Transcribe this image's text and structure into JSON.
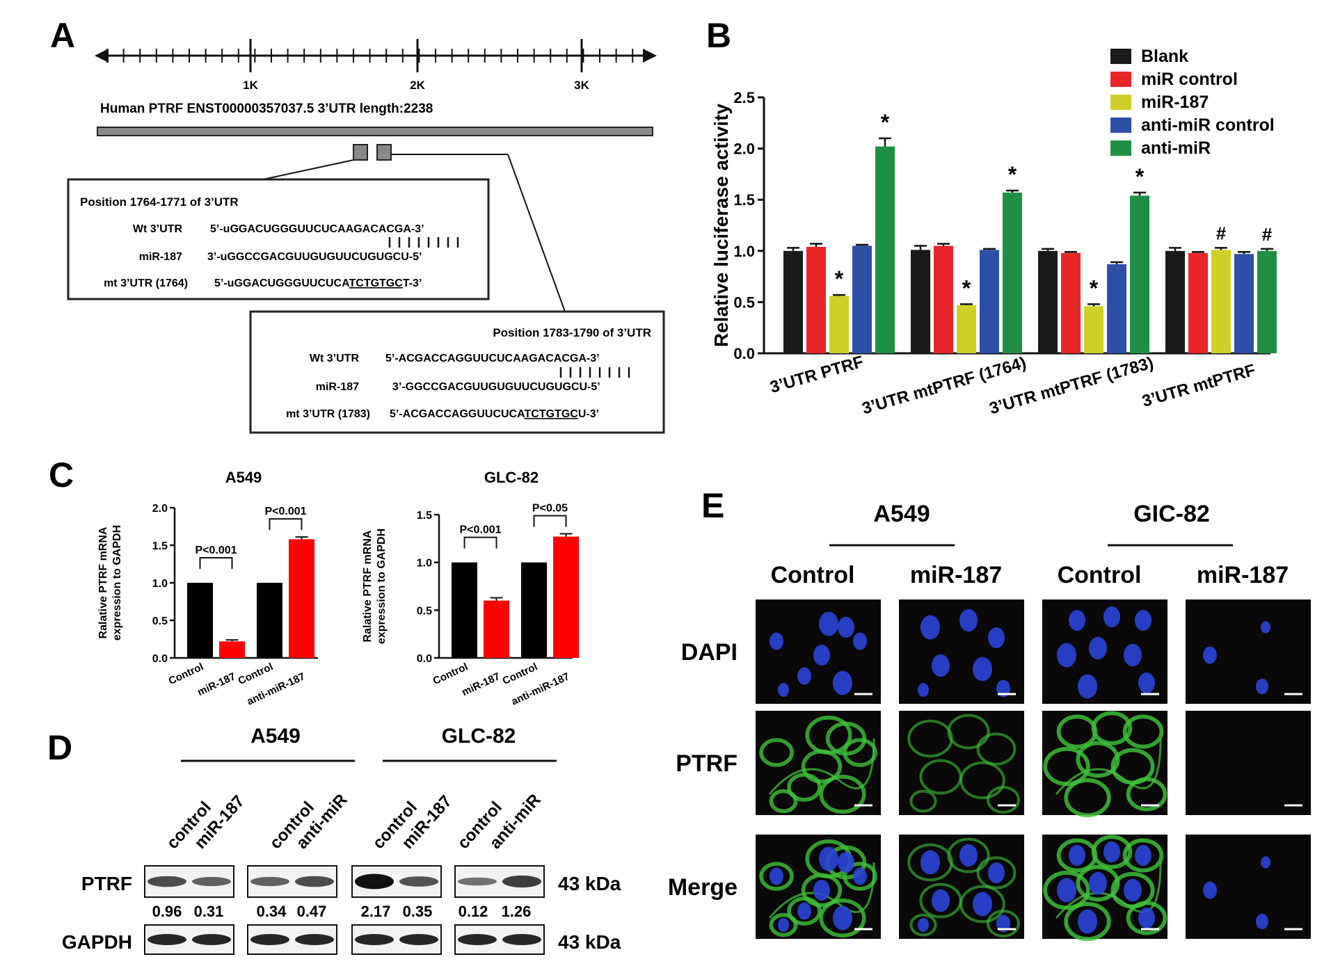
{
  "panel_a": {
    "letter": "A",
    "scale_ticks": [
      "1K",
      "2K",
      "3K"
    ],
    "transcript_label": "Human PTRF ENST00000357037.5 3’UTR length:2238",
    "site1": {
      "title": "Position 1764-1771 of 3’UTR",
      "rows": [
        {
          "label": "Wt 3’UTR",
          "seq": "5’-uGGACUGGGUUCUCAAGACACGA-3’"
        },
        {
          "label": "miR-187",
          "seq": "3’-uGGCCGACGUUGUGUUCUGUGCU-5’"
        },
        {
          "label": "mt  3’UTR  (1764)",
          "seq_prefix": "5’-uGGACUGGGUUCUCA",
          "seq_mut": "TCTGTGC",
          "seq_suffix": "T-3’"
        }
      ]
    },
    "site2": {
      "title": "Position 1783-1790 of 3’UTR",
      "rows": [
        {
          "label": "Wt 3’UTR",
          "seq": "5’-ACGACCAGGUUCUCAAGACACGA-3’"
        },
        {
          "label": "miR-187",
          "seq": "3’-GGCCGACGUUGUGUUCUGUGCU-5’"
        },
        {
          "label": "mt 3’UTR (1783)",
          "seq_prefix": "5’-ACGACCAGGUUCUCA",
          "seq_mut": "TCTGTGC",
          "seq_suffix": "U-3’"
        }
      ]
    }
  },
  "panel_b": {
    "letter": "B",
    "chart_data": {
      "type": "bar",
      "ylabel": "Relative luciferase activity",
      "ylim": [
        0,
        2.5
      ],
      "yticks": [
        "0.0",
        "0.5",
        "1.0",
        "1.5",
        "2.0",
        "2.5"
      ],
      "categories": [
        "3’UTR PTRF",
        "3’UTR mtPTRF (1764)",
        "3’UTR mtPTRF (1783)",
        "3’UTR mtPTRF"
      ],
      "series": [
        {
          "name": "Blank",
          "color": "#1a1a1a",
          "values": [
            1.0,
            1.01,
            1.0,
            1.0
          ],
          "errors": [
            0.03,
            0.04,
            0.02,
            0.03
          ]
        },
        {
          "name": "miR control",
          "color": "#e8262a",
          "values": [
            1.04,
            1.05,
            0.98,
            0.98
          ],
          "errors": [
            0.03,
            0.02,
            0.01,
            0.01
          ]
        },
        {
          "name": "miR-187",
          "color": "#cfd12a",
          "values": [
            0.56,
            0.47,
            0.46,
            1.01
          ],
          "errors": [
            0.01,
            0.01,
            0.02,
            0.02
          ]
        },
        {
          "name": "anti-miR control",
          "color": "#2e4fa8",
          "values": [
            1.05,
            1.01,
            0.87,
            0.97
          ],
          "errors": [
            0.01,
            0.01,
            0.02,
            0.02
          ]
        },
        {
          "name": "anti-miR",
          "color": "#1f8f45",
          "values": [
            2.02,
            1.57,
            1.54,
            1.0
          ],
          "errors": [
            0.08,
            0.02,
            0.03,
            0.02
          ]
        }
      ],
      "annotations": [
        {
          "category": 0,
          "series": 2,
          "text": "*"
        },
        {
          "category": 0,
          "series": 4,
          "text": "*"
        },
        {
          "category": 1,
          "series": 2,
          "text": "*"
        },
        {
          "category": 1,
          "series": 4,
          "text": "*"
        },
        {
          "category": 2,
          "series": 2,
          "text": "*"
        },
        {
          "category": 2,
          "series": 4,
          "text": "*"
        },
        {
          "category": 3,
          "series": 2,
          "text": "#"
        },
        {
          "category": 3,
          "series": 4,
          "text": "#"
        }
      ]
    }
  },
  "panel_c": {
    "letter": "C",
    "chart_data": [
      {
        "type": "bar",
        "title": "A549",
        "ylabel_line1": "Ralative PTRF mRNA",
        "ylabel_line2": "expression to GAPDH",
        "ylim": [
          0,
          2.0
        ],
        "yticks": [
          "0.0",
          "0.5",
          "1.0",
          "1.5",
          "2.0"
        ],
        "categories": [
          "Control",
          "miR-187",
          "Control",
          "anti-miR-187"
        ],
        "values": [
          1.0,
          0.22,
          1.0,
          1.58
        ],
        "errors": [
          0,
          0.02,
          0,
          0.03
        ],
        "colors": [
          "#000000",
          "#ff0000",
          "#000000",
          "#ff0000"
        ],
        "p_values": [
          "P<0.001",
          "P<0.001"
        ]
      },
      {
        "type": "bar",
        "title": "GLC-82",
        "ylabel_line1": "Ralative PTRF mRNA",
        "ylabel_line2": "expression to GAPDH",
        "ylim": [
          0,
          1.5
        ],
        "yticks": [
          "0.0",
          "0.5",
          "1.0",
          "1.5"
        ],
        "categories": [
          "Control",
          "miR-187",
          "Control",
          "anti-miR-187"
        ],
        "values": [
          1.0,
          0.6,
          1.0,
          1.27
        ],
        "errors": [
          0,
          0.03,
          0,
          0.03
        ],
        "colors": [
          "#000000",
          "#ff0000",
          "#000000",
          "#ff0000"
        ],
        "p_values": [
          "P<0.001",
          "P<0.05"
        ]
      }
    ]
  },
  "panel_d": {
    "letter": "D",
    "cell_lines": [
      "A549",
      "GLC-82"
    ],
    "lanes": [
      "control",
      "miR-187",
      "control",
      "anti-miR",
      "control",
      "miR-187",
      "control",
      "anti-miR"
    ],
    "rows": [
      "PTRF",
      "GAPDH"
    ],
    "kda": [
      "43 kDa",
      "43 kDa"
    ],
    "quant": [
      "0.96",
      "0.31",
      "0.34",
      "0.47",
      "2.17",
      "0.35",
      "0.12",
      "1.26"
    ]
  },
  "panel_e": {
    "letter": "E",
    "cell_lines": [
      "A549",
      "GIC-82"
    ],
    "columns": [
      "Control",
      "miR-187",
      "Control",
      "miR-187"
    ],
    "rows": [
      "DAPI",
      "PTRF",
      "Merge"
    ]
  }
}
